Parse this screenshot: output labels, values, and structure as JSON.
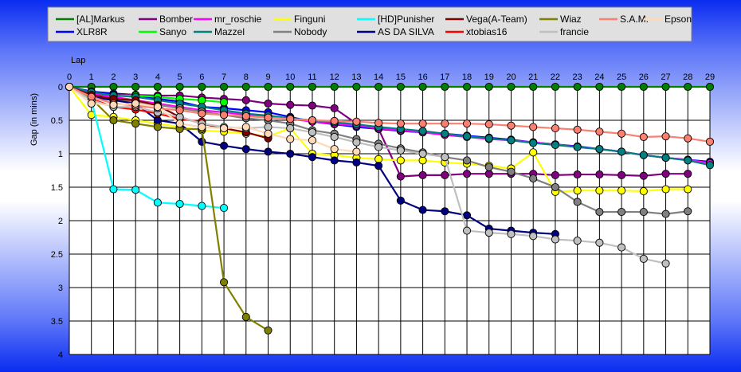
{
  "chart_data": {
    "type": "line",
    "xlabel": "Lap",
    "ylabel": "Gap (in mins)",
    "xlim": [
      0,
      29
    ],
    "ylim": [
      0,
      4
    ],
    "x_ticks": [
      "0",
      "1",
      "2",
      "3",
      "4",
      "5",
      "6",
      "7",
      "8",
      "9",
      "10",
      "11",
      "12",
      "13",
      "14",
      "15",
      "16",
      "17",
      "18",
      "19",
      "20",
      "21",
      "22",
      "23",
      "24",
      "25",
      "26",
      "27",
      "28",
      "29"
    ],
    "y_ticks": [
      "0",
      "0.5",
      "1",
      "1.5",
      "2",
      "2.5",
      "3",
      "3.5",
      "4"
    ],
    "grid": true,
    "legend_position": "top",
    "series": [
      {
        "name": "[AL]Markus",
        "color": "#008000",
        "values": [
          0,
          0,
          0,
          0,
          0,
          0,
          0,
          0,
          0,
          0,
          0,
          0,
          0,
          0,
          0,
          0,
          0,
          0,
          0,
          0,
          0,
          0,
          0,
          0,
          0,
          0,
          0,
          0,
          0,
          0
        ]
      },
      {
        "name": "XLR8R",
        "color": "#0000ff",
        "values": [
          0,
          0.07,
          0.1,
          0.12,
          0.18,
          0.22,
          0.3,
          0.32,
          0.35,
          0.38,
          0.45,
          0.52,
          0.56,
          0.6,
          0.63,
          0.66,
          0.68,
          0.7,
          0.73,
          0.76,
          0.79,
          0.83,
          0.86,
          0.89,
          0.93,
          0.97,
          1.02,
          1.06,
          1.09,
          1.12
        ]
      },
      {
        "name": "Bomber",
        "color": "#800080",
        "values": [
          0,
          0.1,
          0.12,
          0.12,
          0.13,
          0.13,
          0.16,
          0.18,
          0.2,
          0.25,
          0.27,
          0.28,
          0.32,
          0.55,
          0.63,
          1.34,
          1.32,
          1.32,
          1.3,
          1.3,
          1.3,
          1.3,
          1.32,
          1.31,
          1.31,
          1.32,
          1.33,
          1.3,
          1.3
        ]
      },
      {
        "name": "Sanyo",
        "color": "#00ff00",
        "values": [
          0,
          0.1,
          0.13,
          0.13,
          0.15,
          0.18,
          0.2,
          0.23
        ]
      },
      {
        "name": "mr_roschie",
        "color": "#ff00ff",
        "values": [
          0,
          0.1,
          0.15,
          0.2,
          0.25,
          0.3,
          0.35,
          0.38,
          0.42,
          0.45,
          0.48,
          0.52,
          0.55,
          0.58,
          0.62,
          0.65,
          0.68,
          0.72,
          0.75,
          0.78,
          0.8,
          0.83,
          0.86,
          0.9,
          0.93,
          0.97,
          1.02,
          1.06,
          1.09,
          1.14
        ]
      },
      {
        "name": "Mazzel",
        "color": "#008080",
        "values": [
          0,
          0.08,
          0.13,
          0.15,
          0.2,
          0.25,
          0.3,
          0.35,
          0.4,
          0.43,
          0.47,
          0.5,
          0.53,
          0.56,
          0.6,
          0.63,
          0.66,
          0.7,
          0.74,
          0.77,
          0.8,
          0.84,
          0.87,
          0.9,
          0.93,
          0.97,
          1.02,
          1.06,
          1.1,
          1.17
        ]
      },
      {
        "name": "Finguni",
        "color": "#ffff00",
        "values": [
          0,
          0.42,
          0.45,
          0.5,
          0.55,
          0.6,
          0.65,
          0.67,
          0.7,
          0.74,
          0.62,
          1.0,
          1.02,
          1.06,
          1.08,
          1.1,
          1.1,
          1.13,
          1.15,
          1.18,
          1.22,
          0.98,
          1.57,
          1.55,
          1.55,
          1.55,
          1.56,
          1.53,
          1.53
        ]
      },
      {
        "name": "Nobody",
        "color": "#808080",
        "values": [
          0,
          0.15,
          0.2,
          0.22,
          0.27,
          0.32,
          0.37,
          0.42,
          0.47,
          0.5,
          0.55,
          0.65,
          0.7,
          0.78,
          0.85,
          0.92,
          0.98,
          1.05,
          1.1,
          1.2,
          1.27,
          1.37,
          1.5,
          1.72,
          1.87,
          1.87,
          1.87,
          1.9,
          1.86
        ]
      },
      {
        "name": "[HD]Punisher",
        "color": "#00ffff",
        "values": [
          0,
          0.2,
          1.53,
          1.54,
          1.73,
          1.75,
          1.78,
          1.81
        ]
      },
      {
        "name": "AS DA SILVA",
        "color": "#000080",
        "values": [
          0,
          0.15,
          0.2,
          0.25,
          0.5,
          0.55,
          0.82,
          0.88,
          0.93,
          0.97,
          1.0,
          1.05,
          1.1,
          1.13,
          1.18,
          1.7,
          1.84,
          1.86,
          1.92,
          2.12,
          2.15,
          2.18,
          2.2
        ]
      },
      {
        "name": "Vega(A-Team)",
        "color": "#800000",
        "values": [
          0,
          0.12,
          0.18,
          0.2,
          0.28,
          0.45,
          0.55,
          0.62,
          0.68,
          0.77
        ]
      },
      {
        "name": "xtobias16",
        "color": "#ff0000",
        "values": [
          0,
          0.18,
          0.3,
          0.34,
          0.4,
          0.48,
          0.52
        ]
      },
      {
        "name": "Wiaz",
        "color": "#808000",
        "values": [
          0,
          0.18,
          0.5,
          0.55,
          0.6,
          0.63,
          0.63,
          2.92,
          3.44,
          3.64
        ]
      },
      {
        "name": "francie",
        "color": "#c0c0c0",
        "values": [
          0,
          0.2,
          0.3,
          0.3,
          0.38,
          0.45,
          0.55,
          0.6,
          0.62,
          0.6,
          0.62,
          0.68,
          0.75,
          0.83,
          0.9,
          0.95,
          1.0,
          1.05,
          2.15,
          2.18,
          2.2,
          2.23,
          2.28,
          2.3,
          2.33,
          2.4,
          2.57,
          2.64
        ]
      },
      {
        "name": "S.A.M.",
        "color": "#fa8072",
        "values": [
          0,
          0.15,
          0.25,
          0.28,
          0.32,
          0.35,
          0.4,
          0.42,
          0.44,
          0.46,
          0.48,
          0.5,
          0.51,
          0.52,
          0.54,
          0.55,
          0.55,
          0.55,
          0.55,
          0.56,
          0.58,
          0.6,
          0.62,
          0.64,
          0.67,
          0.7,
          0.75,
          0.74,
          0.77,
          0.82
        ]
      },
      {
        "name": "Epson",
        "color": "#ffdab9",
        "values": [
          0,
          0.25,
          0.27,
          0.25,
          0.3,
          0.55,
          0.6,
          0.62,
          0.6,
          0.7,
          0.78,
          0.8,
          0.93,
          0.97
        ]
      }
    ]
  }
}
